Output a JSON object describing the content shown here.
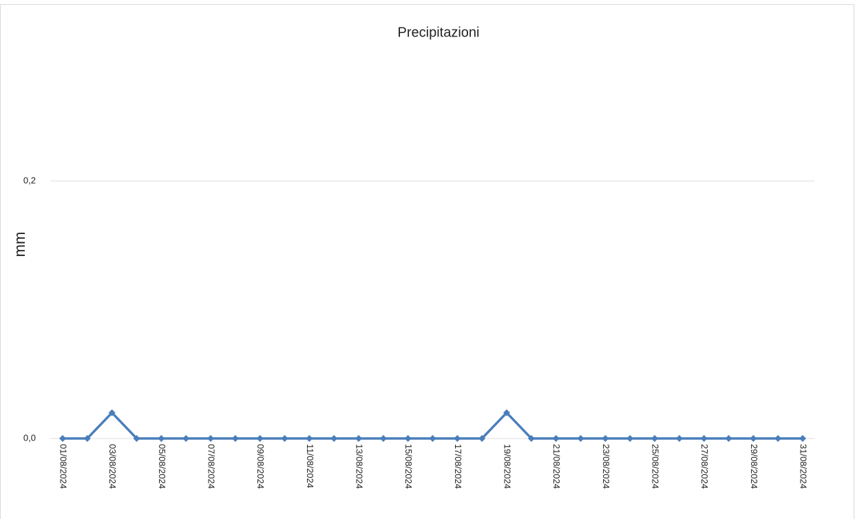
{
  "chart_data": {
    "type": "line",
    "title": "Precipitazioni",
    "y_label": "mm",
    "categories": [
      "01/08/2024",
      null,
      "03/08/2024",
      null,
      "05/08/2024",
      null,
      "07/08/2024",
      null,
      "09/08/2024",
      null,
      "11/08/2024",
      null,
      "13/08/2024",
      null,
      "15/08/2024",
      null,
      "17/08/2024",
      null,
      "19/08/2024",
      null,
      "21/08/2024",
      null,
      "23/08/2024",
      null,
      "25/08/2024",
      null,
      "27/08/2024",
      null,
      "29/08/2024",
      null,
      "31/08/2024"
    ],
    "values": [
      0,
      0,
      0.02,
      0,
      0,
      0,
      0,
      0,
      0,
      0,
      0,
      0,
      0,
      0,
      0,
      0,
      0,
      0,
      0.02,
      0,
      0,
      0,
      0,
      0,
      0,
      0,
      0,
      0,
      0,
      0,
      0
    ],
    "color": "#4a7ebb",
    "ylim": [
      0,
      0.3
    ],
    "yticks": [
      {
        "value": 0,
        "label": "0,0"
      },
      {
        "value": 0.2,
        "label": "0,2"
      }
    ],
    "grid": true
  }
}
